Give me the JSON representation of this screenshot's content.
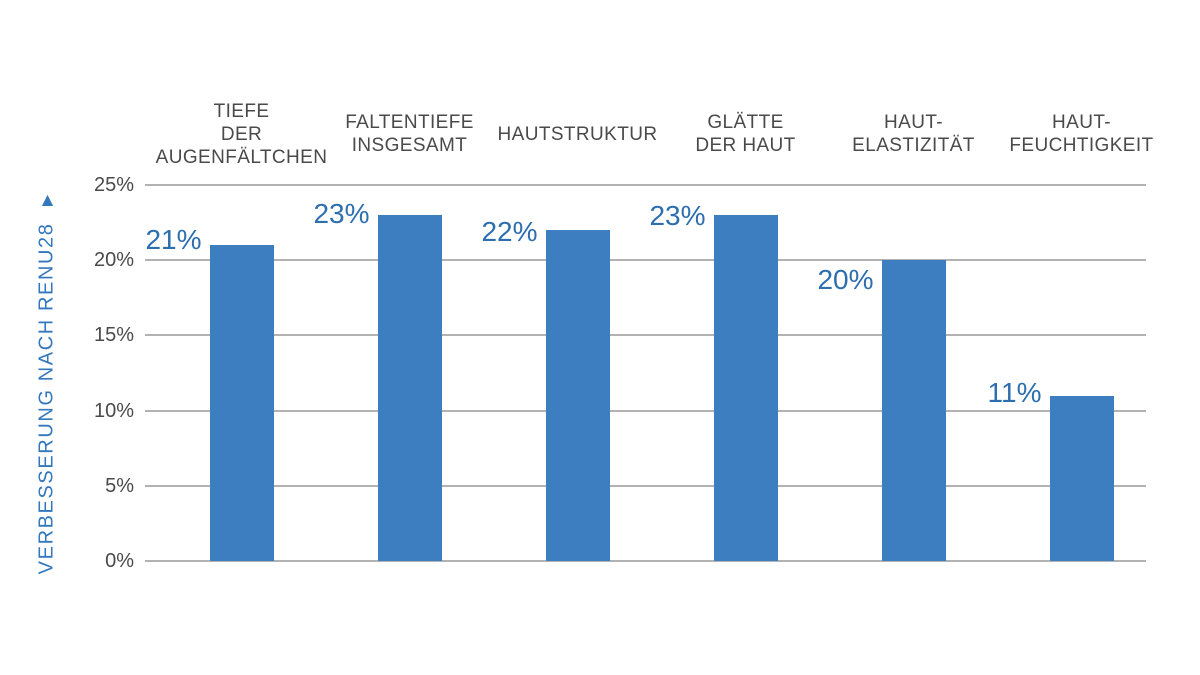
{
  "chart_data": {
    "type": "bar",
    "title": "",
    "categories": [
      "TIEFE DER AUGENFÄLTCHEN",
      "FALTENTIEFE INSGESAMT",
      "HAUTSTRUKTUR",
      "GLÄTTE DER HAUT",
      "HAUT-ELASTIZITÄT",
      "HAUT-FEUCHTIGKEIT"
    ],
    "category_lines": [
      [
        "TIEFE",
        "DER",
        "AUGENFÄLTCHEN"
      ],
      [
        "FALTENTIEFE",
        "INSGESAMT"
      ],
      [
        "HAUTSTRUKTUR"
      ],
      [
        "GLÄTTE",
        "DER HAUT"
      ],
      [
        "HAUT-",
        "ELASTIZITÄT"
      ],
      [
        "HAUT-",
        "FEUCHTIGKEIT"
      ]
    ],
    "values": [
      21,
      23,
      22,
      23,
      20,
      11
    ],
    "value_labels": [
      "21%",
      "23%",
      "22%",
      "23%",
      "20%",
      "11%"
    ],
    "ylabel": "VERBESSERUNG NACH RENU28",
    "ylabel_arrow": "▲",
    "yticks": [
      {
        "value": 25,
        "label": "25%"
      },
      {
        "value": 20,
        "label": "20%"
      },
      {
        "value": 15,
        "label": "15%"
      },
      {
        "value": 10,
        "label": "10%"
      },
      {
        "value": 5,
        "label": "5%"
      },
      {
        "value": 0,
        "label": "0%"
      }
    ],
    "ylim": [
      0,
      25
    ],
    "xlabel": "",
    "grid": true,
    "legend_position": "none",
    "colors": {
      "bar": "#3d7ec1",
      "value_label": "#2d6fae",
      "y_axis_title": "#3377bd",
      "tick_label": "#4a4a4a",
      "category_label": "#4a4a4a",
      "gridline": "#b2b2b2",
      "background": "#ffffff"
    }
  }
}
